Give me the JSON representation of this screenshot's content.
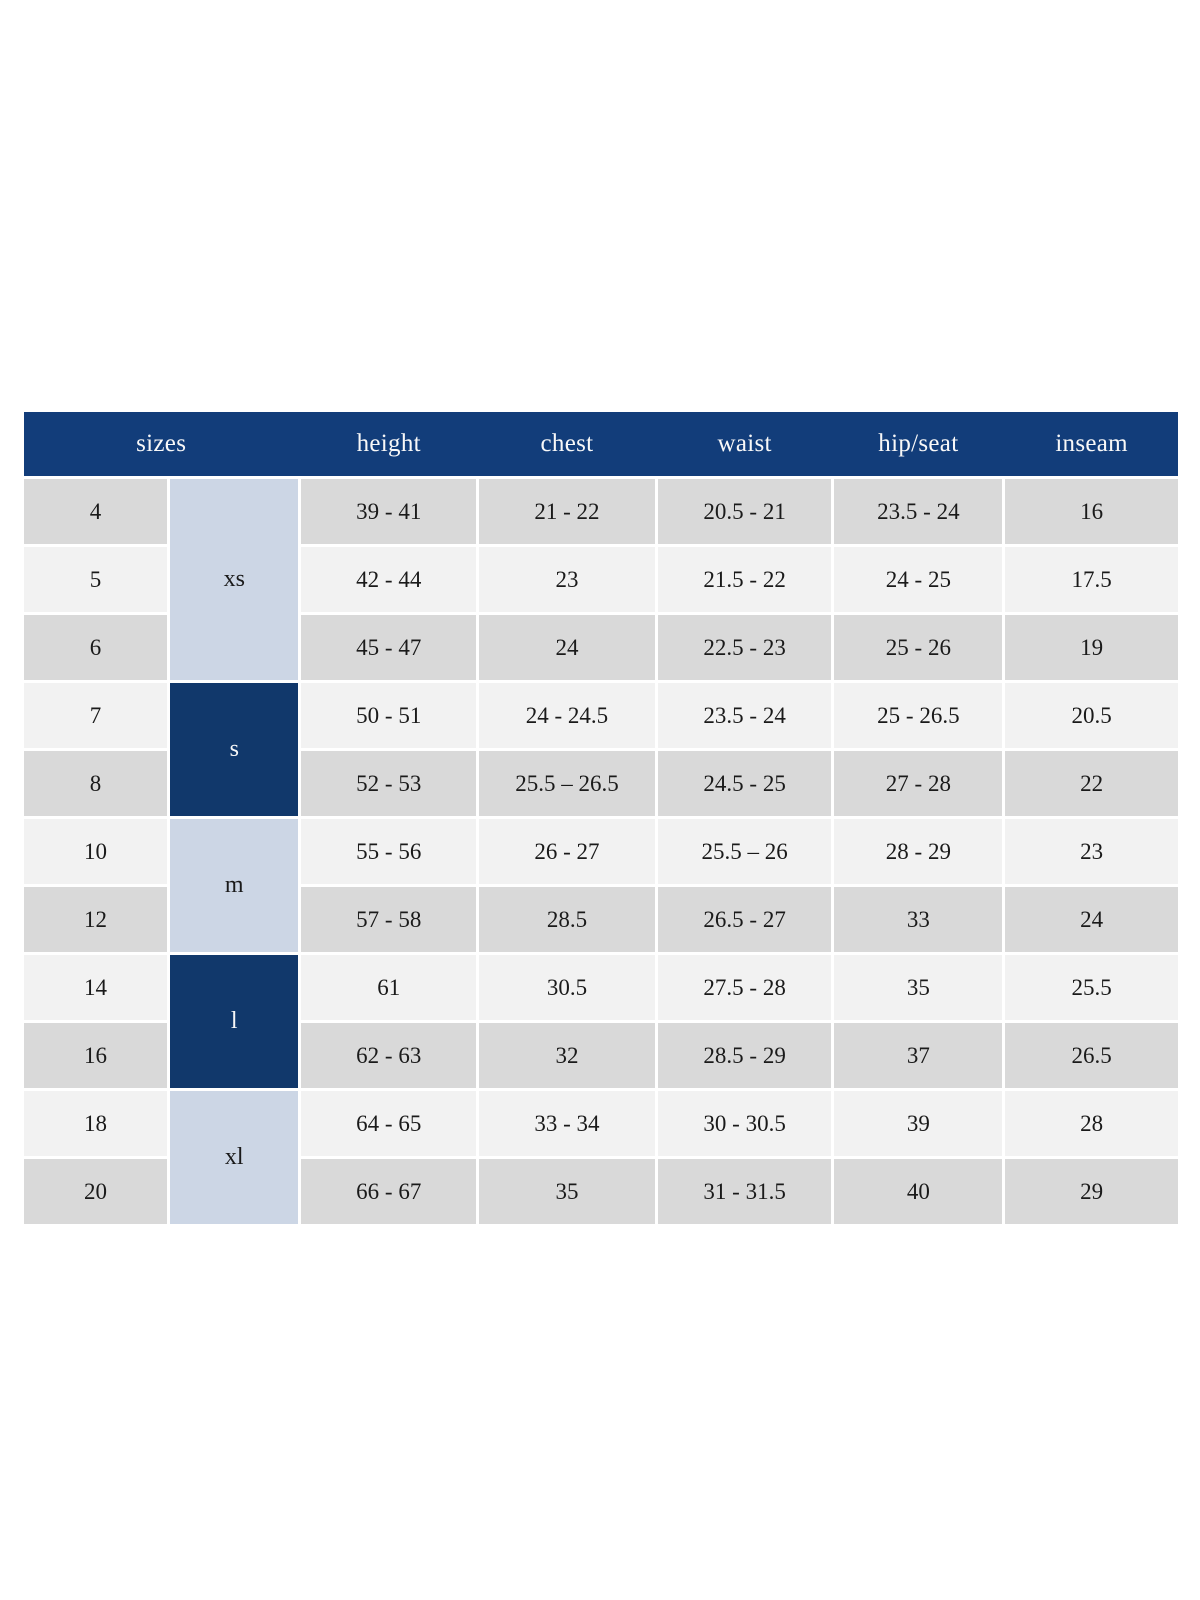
{
  "colors": {
    "header_bg": "#123d7a",
    "group_dark": "#11386b",
    "group_light": "#ccd6e5",
    "row_gray": "#d9d9d9",
    "row_light": "#f2f2f2",
    "header_text": "#f8f8f8",
    "body_text": "#1a1a1a"
  },
  "table": {
    "header": {
      "sizes": "sizes",
      "height": "height",
      "chest": "chest",
      "waist": "waist",
      "hip_seat": "hip/seat",
      "inseam": "inseam"
    },
    "groups": {
      "xs": "xs",
      "s": "s",
      "m": "m",
      "l": "l",
      "xl": "xl"
    },
    "rows": [
      {
        "size": "4",
        "height": "39 - 41",
        "chest": "21 - 22",
        "waist": "20.5 - 21",
        "hip_seat": "23.5 - 24",
        "inseam": "16"
      },
      {
        "size": "5",
        "height": "42 - 44",
        "chest": "23",
        "waist": "21.5 - 22",
        "hip_seat": "24 - 25",
        "inseam": "17.5"
      },
      {
        "size": "6",
        "height": "45 - 47",
        "chest": "24",
        "waist": "22.5 - 23",
        "hip_seat": "25 - 26",
        "inseam": "19"
      },
      {
        "size": "7",
        "height": "50 - 51",
        "chest": "24 - 24.5",
        "waist": "23.5 - 24",
        "hip_seat": "25 - 26.5",
        "inseam": "20.5"
      },
      {
        "size": "8",
        "height": "52 - 53",
        "chest": "25.5 – 26.5",
        "waist": "24.5 - 25",
        "hip_seat": "27 - 28",
        "inseam": "22"
      },
      {
        "size": "10",
        "height": "55 - 56",
        "chest": "26 - 27",
        "waist": "25.5 – 26",
        "hip_seat": "28 - 29",
        "inseam": "23"
      },
      {
        "size": "12",
        "height": "57 - 58",
        "chest": "28.5",
        "waist": "26.5 - 27",
        "hip_seat": "33",
        "inseam": "24"
      },
      {
        "size": "14",
        "height": "61",
        "chest": "30.5",
        "waist": "27.5 - 28",
        "hip_seat": "35",
        "inseam": "25.5"
      },
      {
        "size": "16",
        "height": "62 - 63",
        "chest": "32",
        "waist": "28.5 - 29",
        "hip_seat": "37",
        "inseam": "26.5"
      },
      {
        "size": "18",
        "height": "64 - 65",
        "chest": "33 - 34",
        "waist": "30 - 30.5",
        "hip_seat": "39",
        "inseam": "28"
      },
      {
        "size": "20",
        "height": "66 - 67",
        "chest": "35",
        "waist": "31 - 31.5",
        "hip_seat": "40",
        "inseam": "29"
      }
    ]
  }
}
